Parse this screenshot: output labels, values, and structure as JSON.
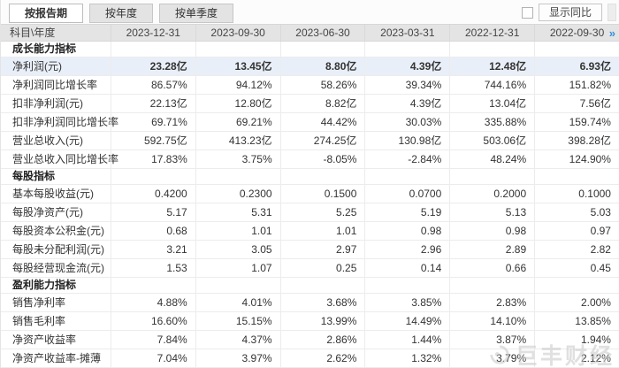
{
  "tabs": [
    {
      "label": "按报告期",
      "active": true
    },
    {
      "label": "按年度",
      "active": false
    },
    {
      "label": "按单季度",
      "active": false
    }
  ],
  "controls": {
    "yoy_checkbox_checked": false,
    "yoy_label": "显示同比"
  },
  "table": {
    "corner": "科目\\年度",
    "columns": [
      "2023-12-31",
      "2023-09-30",
      "2023-06-30",
      "2023-03-31",
      "2022-12-31",
      "2022-09-30"
    ],
    "more_columns_glyph": "»",
    "sections": [
      {
        "title": "成长能力指标",
        "rows": [
          {
            "label": "净利润(元)",
            "highlight": true,
            "values": [
              "23.28亿",
              "13.45亿",
              "8.80亿",
              "4.39亿",
              "12.48亿",
              "6.93亿"
            ]
          },
          {
            "label": "净利润同比增长率",
            "values": [
              "86.57%",
              "94.12%",
              "58.26%",
              "39.34%",
              "744.16%",
              "151.82%"
            ]
          },
          {
            "label": "扣非净利润(元)",
            "values": [
              "22.13亿",
              "12.80亿",
              "8.82亿",
              "4.39亿",
              "13.04亿",
              "7.56亿"
            ]
          },
          {
            "label": "扣非净利润同比增长率",
            "values": [
              "69.71%",
              "69.21%",
              "44.42%",
              "30.03%",
              "335.88%",
              "159.74%"
            ]
          },
          {
            "label": "营业总收入(元)",
            "values": [
              "592.75亿",
              "413.23亿",
              "274.25亿",
              "130.98亿",
              "503.06亿",
              "398.28亿"
            ]
          },
          {
            "label": "营业总收入同比增长率",
            "values": [
              "17.83%",
              "3.75%",
              "-8.05%",
              "-2.84%",
              "48.24%",
              "124.90%"
            ]
          }
        ]
      },
      {
        "title": "每股指标",
        "rows": [
          {
            "label": "基本每股收益(元)",
            "values": [
              "0.4200",
              "0.2300",
              "0.1500",
              "0.0700",
              "0.2000",
              "0.1000"
            ]
          },
          {
            "label": "每股净资产(元)",
            "values": [
              "5.17",
              "5.31",
              "5.25",
              "5.19",
              "5.13",
              "5.03"
            ]
          },
          {
            "label": "每股资本公积金(元)",
            "values": [
              "0.68",
              "1.01",
              "1.01",
              "0.98",
              "0.98",
              "0.97"
            ]
          },
          {
            "label": "每股未分配利润(元)",
            "values": [
              "3.21",
              "3.05",
              "2.97",
              "2.96",
              "2.89",
              "2.82"
            ]
          },
          {
            "label": "每股经营现金流(元)",
            "values": [
              "1.53",
              "1.07",
              "0.25",
              "0.14",
              "0.66",
              "0.45"
            ]
          }
        ]
      },
      {
        "title": "盈利能力指标",
        "rows": [
          {
            "label": "销售净利率",
            "values": [
              "4.88%",
              "4.01%",
              "3.68%",
              "3.85%",
              "2.83%",
              "2.00%"
            ]
          },
          {
            "label": "销售毛利率",
            "values": [
              "16.60%",
              "15.15%",
              "13.99%",
              "14.49%",
              "14.10%",
              "13.85%"
            ]
          },
          {
            "label": "净资产收益率",
            "values": [
              "7.84%",
              "4.37%",
              "2.86%",
              "1.44%",
              "3.87%",
              "1.94%"
            ]
          },
          {
            "label": "净资产收益率-摊薄",
            "values": [
              "7.04%",
              "3.97%",
              "2.62%",
              "1.32%",
              "3.79%",
              "2.12%"
            ]
          }
        ]
      }
    ]
  },
  "watermark": {
    "text": "巨丰财经"
  },
  "colors": {
    "accent": "#3a8fd9",
    "highlight_row": "#e9eff8",
    "header_bg": "#e4e4e4",
    "tab_inactive_bg": "#e3e3e3",
    "watermark_color": "#c8c8c8"
  }
}
